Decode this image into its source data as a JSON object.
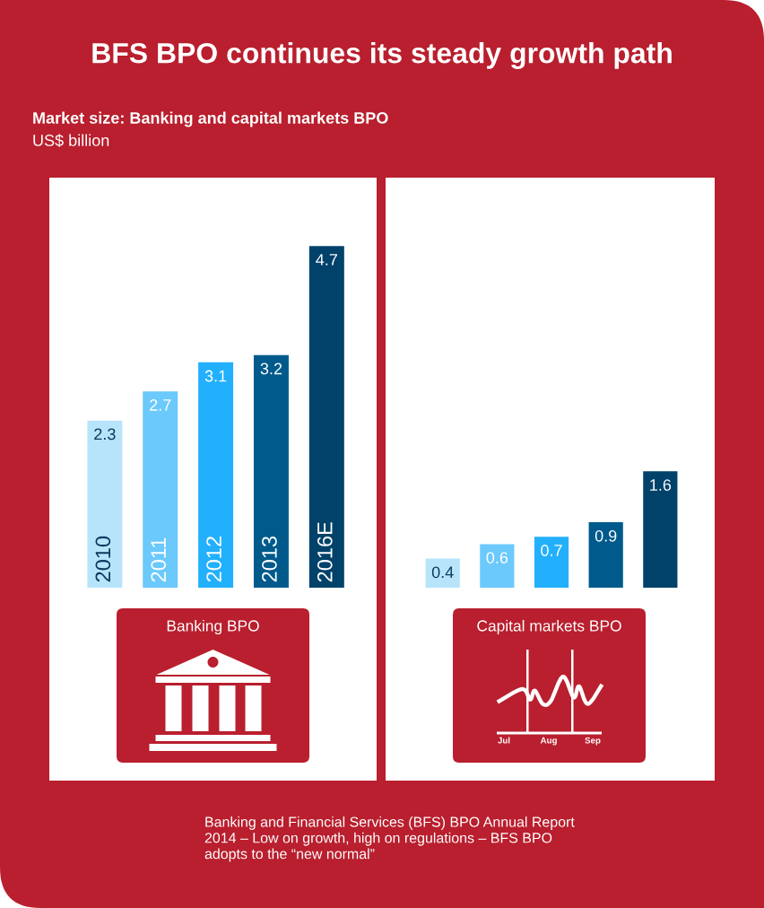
{
  "chart_data": [
    {
      "type": "bar",
      "title": "BFS BPO continues its steady growth path",
      "subtitle": "Market size: Banking and capital markets BPO",
      "ylabel": "US$ billion",
      "xlabel": "Banking BPO",
      "categories": [
        "2010",
        "2011",
        "2012",
        "2013",
        "2016E"
      ],
      "values": [
        2.3,
        2.7,
        3.1,
        3.2,
        4.7
      ],
      "colors": [
        "#b7e4fb",
        "#6bc9fc",
        "#22b0fc",
        "#005a8c",
        "#00426a"
      ],
      "data_labels": true,
      "annotations": [
        "Banking and Financial Services (BFS) BPO Annual Report\n2014 – Low on growth, high on regulations – BFS BPO\nadopts to the “new normal”"
      ]
    },
    {
      "type": "bar",
      "xlabel": "Capital markets BPO",
      "categories": [
        null,
        null,
        null,
        null,
        null
      ],
      "values": [
        0.4,
        0.6,
        0.7,
        0.9,
        1.6
      ],
      "colors": [
        "#b7e4fb",
        "#6bc9fc",
        "#22b0fc",
        "#005a8c",
        "#00426a"
      ],
      "data_labels": true,
      "annotations": [
        "Jul",
        "Aug",
        "Sep"
      ]
    }
  ]
}
